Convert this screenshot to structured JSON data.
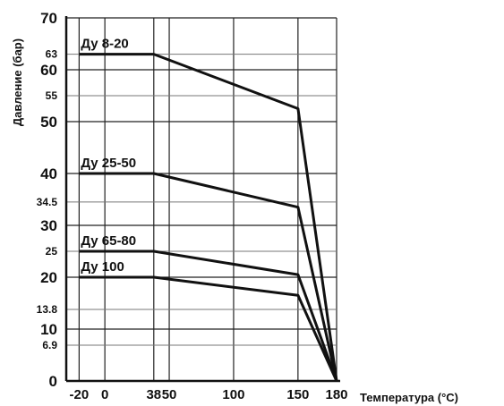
{
  "chart_data": {
    "type": "line",
    "title": "",
    "xlabel": "Температура (°C)",
    "ylabel": "Давление (бар)",
    "xlim": [
      -30,
      180
    ],
    "ylim": [
      0,
      70
    ],
    "grid": true,
    "x_ticks": [
      -20,
      0,
      38,
      50,
      100,
      150,
      180
    ],
    "y_ticks_major": [
      0,
      10,
      20,
      30,
      40,
      50,
      60,
      70
    ],
    "y_ticks_minor": [
      6.9,
      13.8,
      25,
      34.5,
      55,
      63
    ],
    "series": [
      {
        "name": "Ду 8-20",
        "points": [
          [
            -20,
            63
          ],
          [
            38,
            63
          ],
          [
            150,
            52.5
          ],
          [
            180,
            0
          ]
        ]
      },
      {
        "name": "Ду 25-50",
        "points": [
          [
            -20,
            40
          ],
          [
            38,
            40
          ],
          [
            150,
            33.5
          ],
          [
            180,
            0
          ]
        ]
      },
      {
        "name": "Ду 65-80",
        "points": [
          [
            -20,
            25
          ],
          [
            38,
            25
          ],
          [
            150,
            20.5
          ],
          [
            180,
            0
          ]
        ]
      },
      {
        "name": "Ду 100",
        "points": [
          [
            -20,
            20
          ],
          [
            38,
            20
          ],
          [
            150,
            16.5
          ],
          [
            180,
            0
          ]
        ]
      }
    ],
    "colors": {
      "line": "#111111",
      "grid": "#222222",
      "grid_minor": "#777777"
    }
  }
}
